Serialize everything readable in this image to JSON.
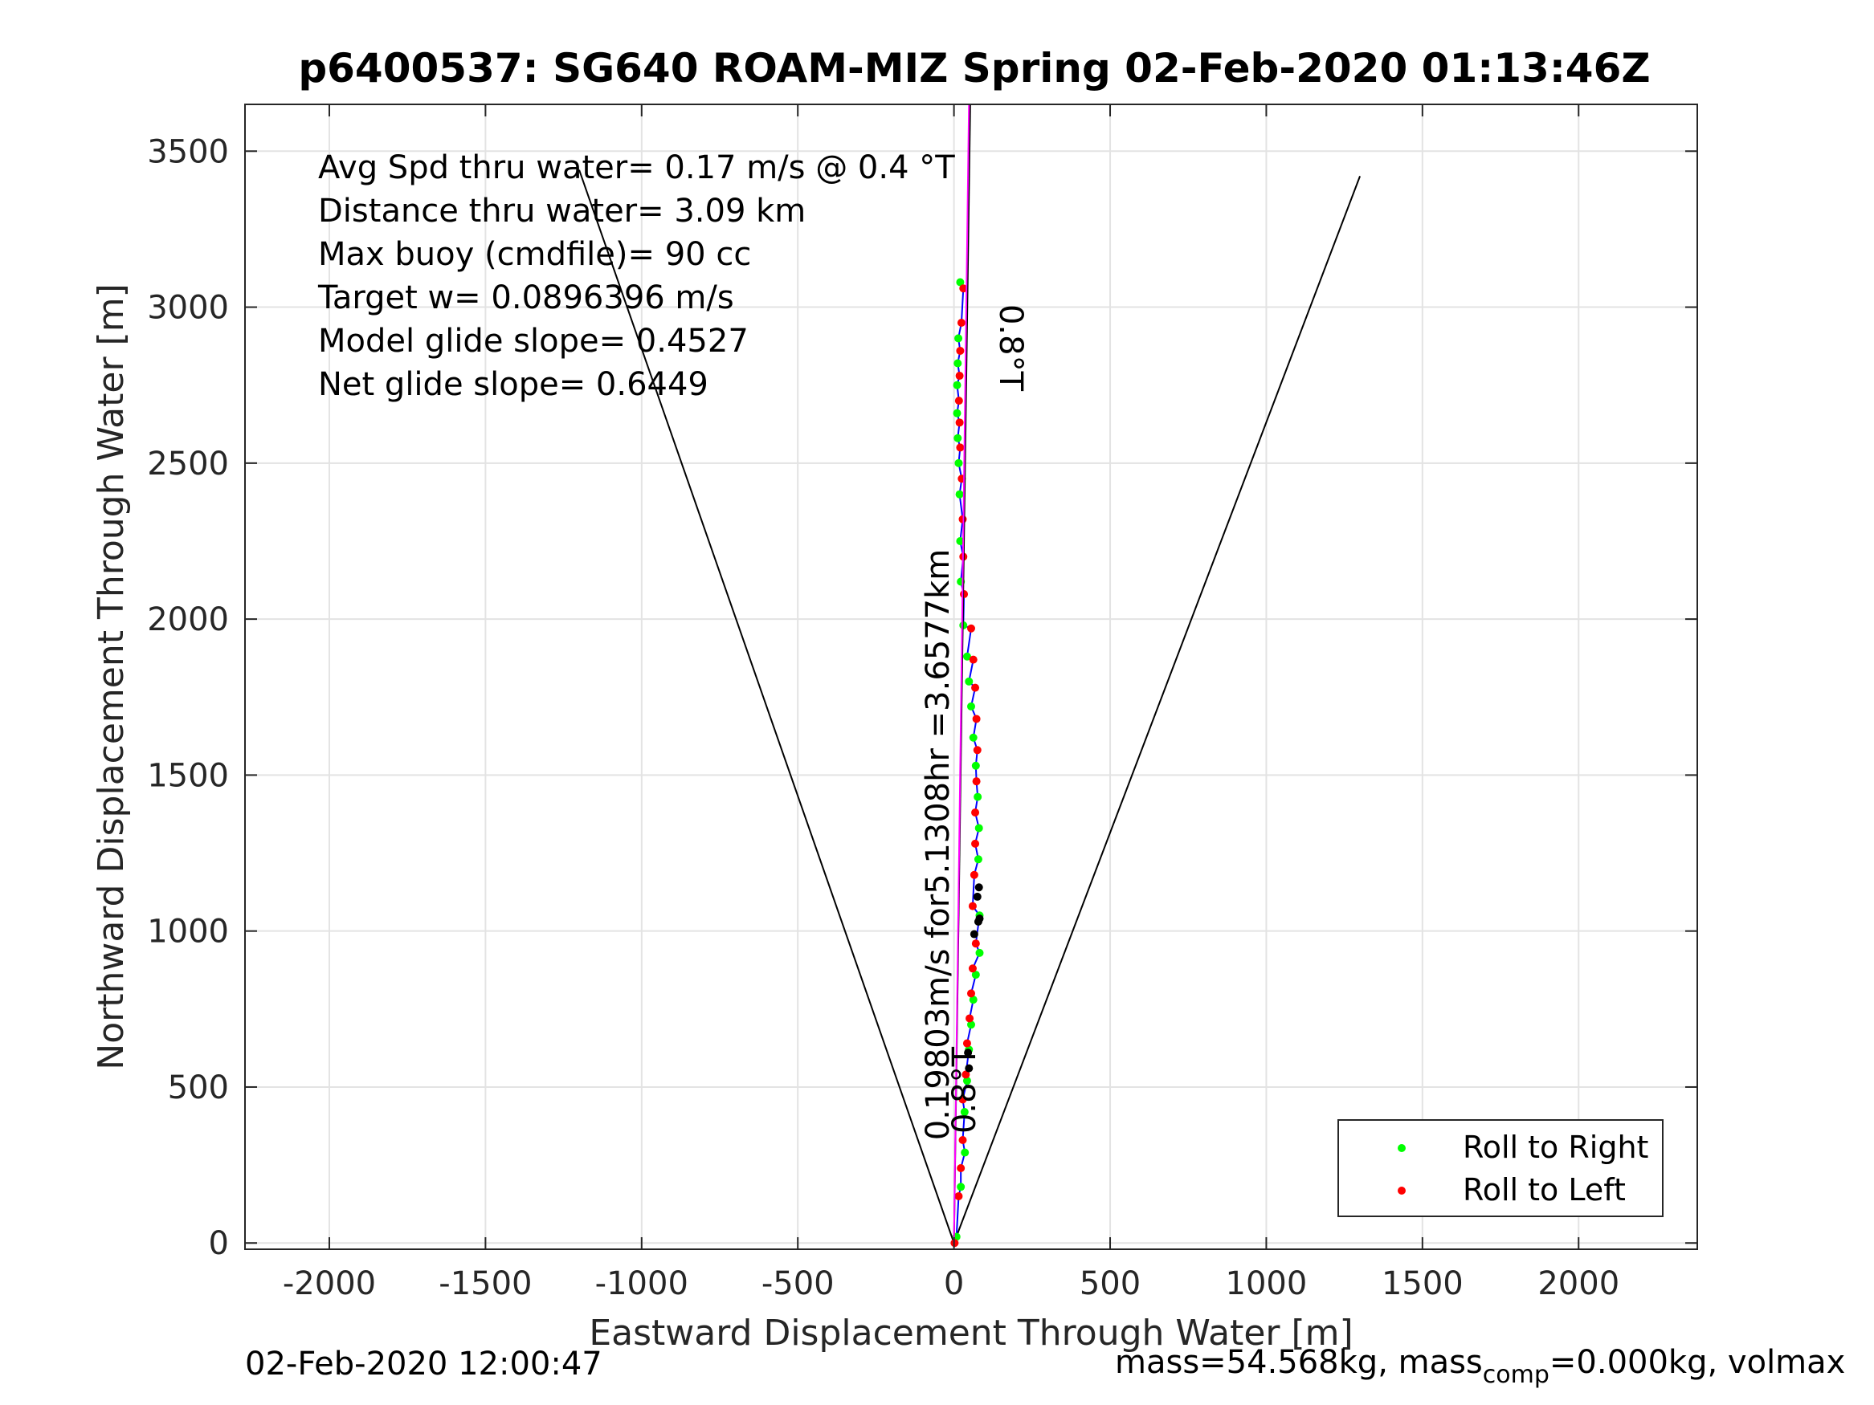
{
  "chart_data": {
    "type": "scatter",
    "title": "p6400537: SG640 ROAM-MIZ Spring 02-Feb-2020 01:13:46Z",
    "xlabel": "Eastward Displacement Through Water [m]",
    "ylabel": "Northward Displacement Through Water [m]",
    "xlim": [
      -2270,
      2380
    ],
    "ylim": [
      -20,
      3650
    ],
    "grid": true,
    "x_ticks": [
      -2000,
      -1500,
      -1000,
      -500,
      0,
      500,
      1000,
      1500,
      2000
    ],
    "y_ticks": [
      0,
      500,
      1000,
      1500,
      2000,
      2500,
      3000,
      3500
    ],
    "legend_position": "bottom-right",
    "legend": [
      {
        "label": "Roll to Right",
        "color": "#00ff00"
      },
      {
        "label": "Roll to Left",
        "color": "#ff0000"
      }
    ],
    "annotations": [
      "Avg Spd thru water=  0.17 m/s @   0.4 °T",
      "Distance thru water=  3.09 km",
      "Max buoy (cmdfile)= 90 cc",
      "Target w= 0.0896396 m/s",
      "Model glide slope= 0.4527",
      "Net glide slope= 0.6449"
    ],
    "heading_label_top": "0.8°T",
    "heading_label_bottom": "0.8°T",
    "track_label": "0.19803m/s for5.1308hr =3.6577km",
    "cone_lines": [
      {
        "x": [
          0,
          -1200
        ],
        "y": [
          0,
          3440
        ]
      },
      {
        "x": [
          0,
          1300
        ],
        "y": [
          0,
          3420
        ]
      }
    ],
    "heading_line": {
      "x": [
        0,
        52
      ],
      "y": [
        0,
        3650
      ],
      "color": "#000000"
    },
    "course_line": {
      "x": [
        0,
        48
      ],
      "y": [
        0,
        3650
      ],
      "color": "#ff00ff"
    },
    "series": [
      {
        "name": "Roll to Right",
        "color": "#00ff00",
        "points": [
          [
            8,
            20
          ],
          [
            22,
            180
          ],
          [
            35,
            290
          ],
          [
            34,
            420
          ],
          [
            42,
            520
          ],
          [
            48,
            620
          ],
          [
            55,
            700
          ],
          [
            62,
            780
          ],
          [
            70,
            860
          ],
          [
            82,
            930
          ],
          [
            82,
            1050
          ],
          [
            78,
            1230
          ],
          [
            80,
            1330
          ],
          [
            76,
            1430
          ],
          [
            70,
            1530
          ],
          [
            62,
            1620
          ],
          [
            55,
            1720
          ],
          [
            48,
            1800
          ],
          [
            42,
            1880
          ],
          [
            30,
            1980
          ],
          [
            22,
            2120
          ],
          [
            20,
            2250
          ],
          [
            18,
            2400
          ],
          [
            15,
            2500
          ],
          [
            12,
            2580
          ],
          [
            10,
            2660
          ],
          [
            10,
            2750
          ],
          [
            12,
            2820
          ],
          [
            14,
            2900
          ],
          [
            20,
            3080
          ]
        ]
      },
      {
        "name": "Roll to Left",
        "color": "#ff0000",
        "points": [
          [
            2,
            0
          ],
          [
            15,
            150
          ],
          [
            22,
            240
          ],
          [
            28,
            330
          ],
          [
            28,
            460
          ],
          [
            38,
            540
          ],
          [
            42,
            640
          ],
          [
            50,
            720
          ],
          [
            55,
            800
          ],
          [
            60,
            880
          ],
          [
            70,
            960
          ],
          [
            60,
            1080
          ],
          [
            65,
            1180
          ],
          [
            68,
            1280
          ],
          [
            68,
            1380
          ],
          [
            72,
            1480
          ],
          [
            75,
            1580
          ],
          [
            72,
            1680
          ],
          [
            68,
            1780
          ],
          [
            62,
            1870
          ],
          [
            55,
            1970
          ],
          [
            32,
            2080
          ],
          [
            30,
            2200
          ],
          [
            28,
            2320
          ],
          [
            25,
            2450
          ],
          [
            20,
            2550
          ],
          [
            18,
            2630
          ],
          [
            16,
            2700
          ],
          [
            18,
            2780
          ],
          [
            20,
            2860
          ],
          [
            24,
            2950
          ],
          [
            30,
            3060
          ]
        ]
      },
      {
        "name": "",
        "color": "#000000",
        "points": [
          [
            65,
            990
          ],
          [
            78,
            1030
          ],
          [
            82,
            1040
          ],
          [
            75,
            1110
          ],
          [
            80,
            1140
          ],
          [
            45,
            610
          ],
          [
            48,
            560
          ]
        ]
      }
    ]
  },
  "footer": {
    "left": "02-Feb-2020 12:00:47",
    "right_prefix": "mass=54.568kg, mass",
    "right_sub": "comp",
    "right_suffix": "=0.000kg, volmax"
  }
}
